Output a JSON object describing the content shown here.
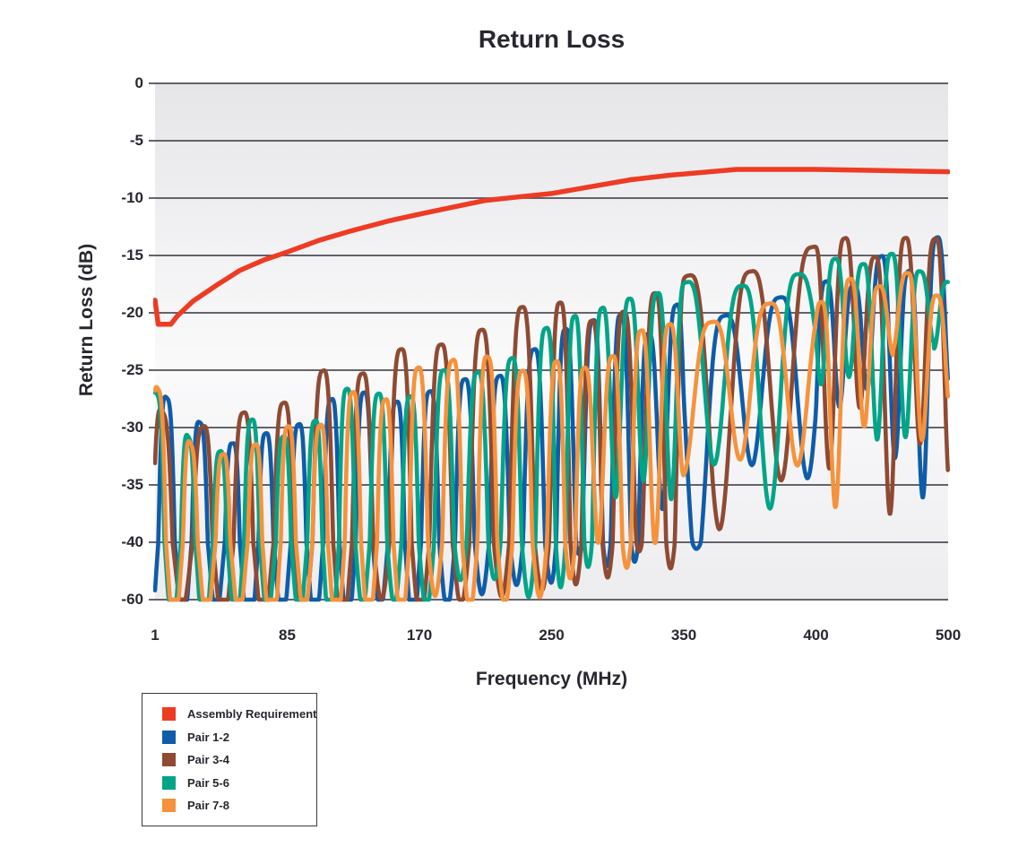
{
  "chart_data": {
    "type": "line",
    "title": "Return Loss",
    "xlabel": "Frequency (MHz)",
    "ylabel": "Return Loss (dB)",
    "x_ticks": [
      1,
      85,
      170,
      250,
      350,
      400,
      500
    ],
    "y_ticks": [
      0,
      -5,
      -10,
      -15,
      -20,
      -25,
      -30,
      -35,
      -40,
      -60
    ],
    "x_range": [
      1,
      500
    ],
    "y_range": [
      0,
      -60
    ],
    "grid": "horizontal-only",
    "legend_position": "bottom-left",
    "axis_note": "x ticks evenly spaced though non-uniform in MHz; bottom y band -40 to -60 drawn at same spacing as the 5 dB bands",
    "style": {
      "text_color": "#28272F",
      "gridline_color": "#4E4E56",
      "plot_bg_top": "#E6E6E9",
      "plot_bg_mid": "#FAFAFB",
      "plot_bg_bottom": "#EDEDF0"
    },
    "generator": {
      "step_mhz": 0.4,
      "dip_shape": 1.75,
      "floor_db": -60,
      "min_dip_below_peak_db": 6
    },
    "series": [
      {
        "name": "Assembly Requirement",
        "color": "#EE3B24",
        "kind": "limit",
        "stroke_width": 5.5,
        "points": [
          [
            1,
            -18.9
          ],
          [
            3,
            -21
          ],
          [
            11,
            -21
          ],
          [
            15,
            -20.3
          ],
          [
            25,
            -19
          ],
          [
            40,
            -17.6
          ],
          [
            55,
            -16.3
          ],
          [
            70,
            -15.4
          ],
          [
            85,
            -14.7
          ],
          [
            105,
            -13.7
          ],
          [
            125,
            -12.9
          ],
          [
            150,
            -12.0
          ],
          [
            170,
            -11.4
          ],
          [
            190,
            -10.8
          ],
          [
            210,
            -10.2
          ],
          [
            230,
            -9.9
          ],
          [
            250,
            -9.6
          ],
          [
            280,
            -9.0
          ],
          [
            310,
            -8.4
          ],
          [
            340,
            -8.0
          ],
          [
            370,
            -7.5
          ],
          [
            400,
            -7.5
          ],
          [
            450,
            -7.6
          ],
          [
            500,
            -7.7
          ]
        ]
      },
      {
        "name": "Pair 1-2",
        "color": "#0F5CA8",
        "kind": "measured",
        "stroke_width": 4.6,
        "seed": 11,
        "phase0": -2.2,
        "peak_jitter": 2.6,
        "dip_var": 16,
        "period": [
          [
            1,
            21
          ],
          [
            500,
            21
          ]
        ],
        "upper_envelope": [
          [
            1,
            -26.5
          ],
          [
            20,
            -29
          ],
          [
            50,
            -31.5
          ],
          [
            85,
            -30
          ],
          [
            130,
            -27.5
          ],
          [
            170,
            -26.5
          ],
          [
            210,
            -25
          ],
          [
            250,
            -22.8
          ],
          [
            300,
            -20.5
          ],
          [
            340,
            -20.8
          ],
          [
            380,
            -18.5
          ],
          [
            420,
            -17
          ],
          [
            460,
            -15.5
          ],
          [
            500,
            -14
          ]
        ],
        "lower_envelope": [
          [
            1,
            -80
          ],
          [
            120,
            -78
          ],
          [
            220,
            -66
          ],
          [
            300,
            -52
          ],
          [
            400,
            -43
          ],
          [
            500,
            -36
          ]
        ]
      },
      {
        "name": "Pair 3-4",
        "color": "#8E4A32",
        "kind": "measured",
        "stroke_width": 4.6,
        "seed": 7,
        "phase0": -1.1,
        "peak_jitter": 2.8,
        "dip_var": 17,
        "period": [
          [
            1,
            26
          ],
          [
            500,
            22.5
          ]
        ],
        "upper_envelope": [
          [
            1,
            -26.5
          ],
          [
            25,
            -31
          ],
          [
            56,
            -28.5
          ],
          [
            85,
            -27
          ],
          [
            120,
            -25
          ],
          [
            150,
            -23.5
          ],
          [
            180,
            -22.5
          ],
          [
            210,
            -21.5
          ],
          [
            250,
            -20.3
          ],
          [
            290,
            -19.5
          ],
          [
            330,
            -19
          ],
          [
            360,
            -17.5
          ],
          [
            400,
            -15.5
          ],
          [
            440,
            -14
          ],
          [
            470,
            -13
          ],
          [
            500,
            -11.8
          ]
        ],
        "lower_envelope": [
          [
            1,
            -80
          ],
          [
            120,
            -76
          ],
          [
            220,
            -64
          ],
          [
            300,
            -54
          ],
          [
            400,
            -45
          ],
          [
            500,
            -37
          ]
        ]
      },
      {
        "name": "Pair 5-6",
        "color": "#00A487",
        "kind": "measured",
        "stroke_width": 4.6,
        "seed": 23,
        "phase0": -0.35,
        "peak_jitter": 2.4,
        "dip_var": 15,
        "period": [
          [
            1,
            20
          ],
          [
            500,
            21.5
          ]
        ],
        "upper_envelope": [
          [
            1,
            -25.8
          ],
          [
            30,
            -32
          ],
          [
            60,
            -30.5
          ],
          [
            85,
            -29.5
          ],
          [
            130,
            -27.5
          ],
          [
            170,
            -26
          ],
          [
            210,
            -24.3
          ],
          [
            250,
            -21.8
          ],
          [
            290,
            -19.5
          ],
          [
            330,
            -19.3
          ],
          [
            370,
            -17
          ],
          [
            420,
            -16.3
          ],
          [
            460,
            -15.8
          ],
          [
            500,
            -16.5
          ]
        ],
        "lower_envelope": [
          [
            1,
            -80
          ],
          [
            120,
            -77
          ],
          [
            220,
            -65
          ],
          [
            300,
            -50
          ],
          [
            400,
            -40
          ],
          [
            500,
            -31
          ]
        ]
      },
      {
        "name": "Pair 7-8",
        "color": "#F6923C",
        "kind": "measured",
        "stroke_width": 4.6,
        "seed": 41,
        "phase0": -0.6,
        "peak_jitter": 2.7,
        "dip_var": 15,
        "period": [
          [
            1,
            20.5
          ],
          [
            500,
            22
          ]
        ],
        "upper_envelope": [
          [
            1,
            -26.2
          ],
          [
            30,
            -33
          ],
          [
            60,
            -31.5
          ],
          [
            85,
            -30.5
          ],
          [
            130,
            -28
          ],
          [
            170,
            -25.3
          ],
          [
            195,
            -23.2
          ],
          [
            230,
            -24.8
          ],
          [
            260,
            -24
          ],
          [
            300,
            -22.8
          ],
          [
            350,
            -20.5
          ],
          [
            400,
            -18.3
          ],
          [
            450,
            -17
          ],
          [
            500,
            -17.3
          ]
        ],
        "lower_envelope": [
          [
            1,
            -82
          ],
          [
            120,
            -78
          ],
          [
            220,
            -66
          ],
          [
            300,
            -50
          ],
          [
            400,
            -41
          ],
          [
            500,
            -33
          ]
        ]
      }
    ]
  }
}
